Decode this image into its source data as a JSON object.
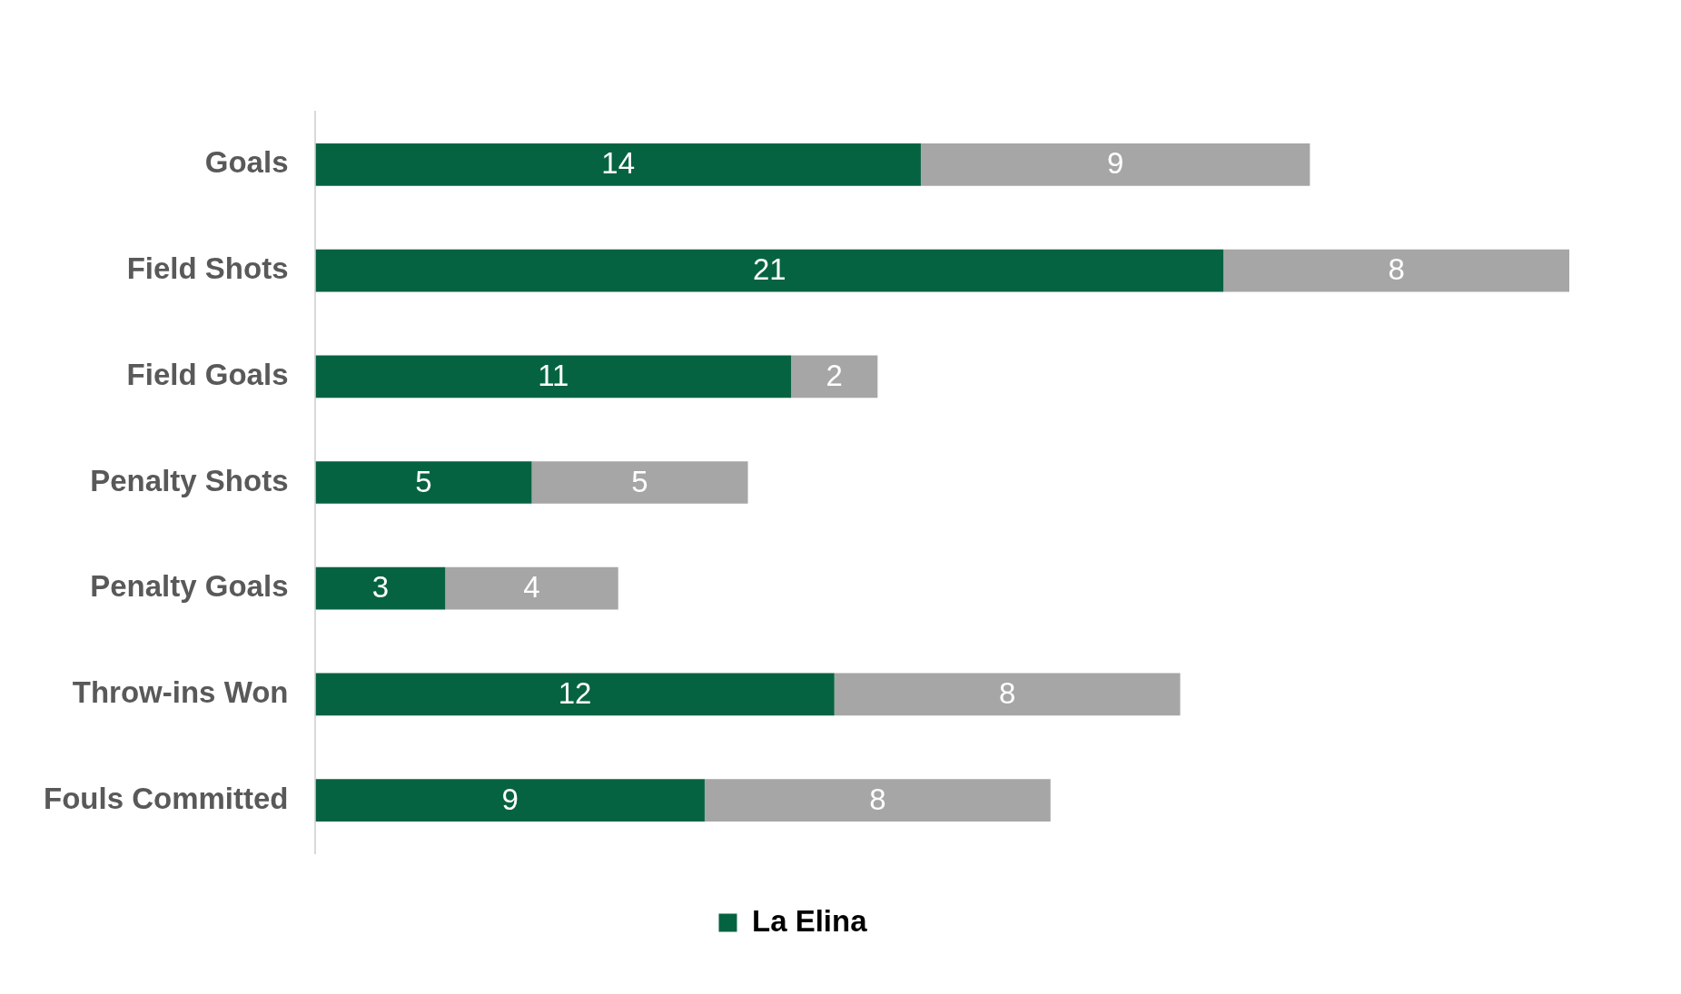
{
  "chart_data": {
    "type": "bar",
    "orientation": "horizontal",
    "stacked": true,
    "categories": [
      "Goals",
      "Field Shots",
      "Field Goals",
      "Penalty Shots",
      "Penalty Goals",
      "Throw-ins Won",
      "Fouls Committed"
    ],
    "series": [
      {
        "name": "La Elina",
        "color": "#066341",
        "values": [
          14,
          21,
          11,
          5,
          3,
          12,
          9
        ]
      },
      {
        "color": "#a6a6a6",
        "values": [
          9,
          8,
          2,
          5,
          4,
          8,
          8
        ]
      }
    ],
    "data_labels": true,
    "tick_labels": "y",
    "grid": false,
    "legend": "bottom"
  }
}
